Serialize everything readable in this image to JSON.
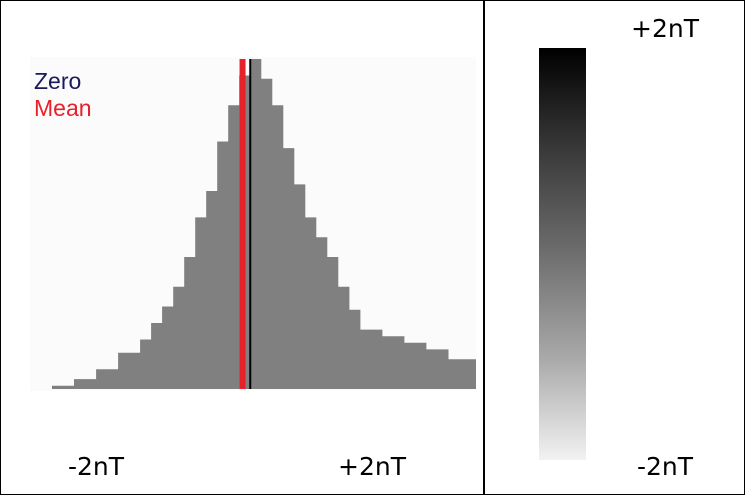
{
  "colors": {
    "histogram_fill": "#808080",
    "plot_background": "#fbfbfb",
    "zero_line": "#000000",
    "mean_line": "#e8202a",
    "zero_text": "#1a1a5a",
    "mean_text": "#e8202a",
    "colorbar_top": "#000000",
    "colorbar_bottom": "#f2f2f2"
  },
  "legend": {
    "zero_label": "Zero",
    "mean_label": "Mean"
  },
  "colorbar": {
    "top_label": "+2nT",
    "bottom_label": "-2nT"
  },
  "chart_data": {
    "type": "area",
    "title": "",
    "xlabel": "",
    "ylabel": "",
    "xlim": [
      -2.0,
      2.05
    ],
    "ylim": [
      0,
      1.0
    ],
    "tick_labels": [
      {
        "x": -1.25,
        "label": "-2nT"
      },
      {
        "x": 1.25,
        "label": "+2nT"
      }
    ],
    "markers": [
      {
        "name": "Zero",
        "x": 0.0
      },
      {
        "name": "Mean",
        "x": -0.07
      }
    ],
    "series": [
      {
        "x": [
          -2.0,
          -1.8,
          -1.6,
          -1.4,
          -1.2,
          -1.0,
          -0.9,
          -0.8,
          -0.7,
          -0.6,
          -0.5,
          -0.4,
          -0.3,
          -0.2,
          -0.1,
          0.0,
          0.1,
          0.2,
          0.3,
          0.4,
          0.5,
          0.6,
          0.7,
          0.8,
          0.9,
          1.0,
          1.2,
          1.4,
          1.6,
          1.8,
          2.05
        ],
        "y": [
          0.0,
          0.01,
          0.03,
          0.06,
          0.11,
          0.15,
          0.2,
          0.25,
          0.31,
          0.4,
          0.52,
          0.6,
          0.75,
          0.86,
          0.95,
          1.0,
          0.94,
          0.86,
          0.73,
          0.62,
          0.52,
          0.46,
          0.4,
          0.31,
          0.24,
          0.18,
          0.16,
          0.14,
          0.12,
          0.09,
          0.07
        ]
      }
    ]
  }
}
